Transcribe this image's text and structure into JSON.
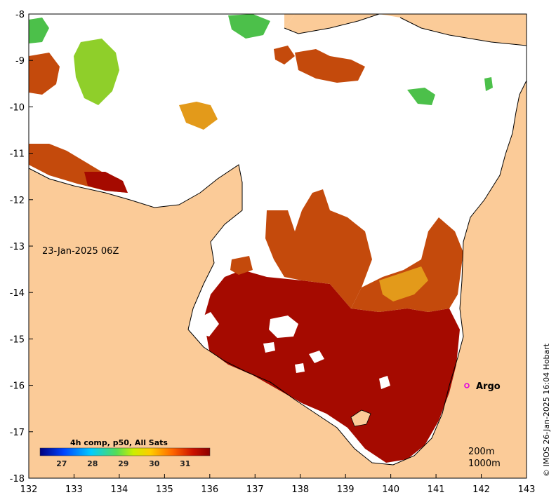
{
  "map": {
    "timestamp": "23-Jan-2025 06Z",
    "credit": "© IMOS 26-Jan-2025 16:04 Hobart",
    "depth_contours": [
      "200m",
      "1000m"
    ],
    "argo_label": "Argo",
    "argo_position": {
      "lon": 141.7,
      "lat": -16.0
    },
    "colors": {
      "land": "#fbcb98",
      "no_data": "#ffffff",
      "sst_hot": "#a50a00",
      "sst_warm": "#c44a0c",
      "sst_mid": "#e39a1a",
      "sst_cool": "#4cc04a",
      "argo_marker": "#e000e0"
    }
  },
  "axes": {
    "x_ticks": [
      "132",
      "133",
      "134",
      "135",
      "136",
      "137",
      "138",
      "139",
      "140",
      "141",
      "142",
      "143"
    ],
    "y_ticks": [
      "-8",
      "-9",
      "-10",
      "-11",
      "-12",
      "-13",
      "-14",
      "-15",
      "-16",
      "-17",
      "-18"
    ],
    "x_range": [
      132,
      143
    ],
    "y_range": [
      -18,
      -8
    ]
  },
  "colorbar": {
    "title": "4h comp, p50, All Sats",
    "ticks": [
      "27",
      "28",
      "29",
      "30",
      "31"
    ],
    "range": [
      26.3,
      31.8
    ]
  }
}
